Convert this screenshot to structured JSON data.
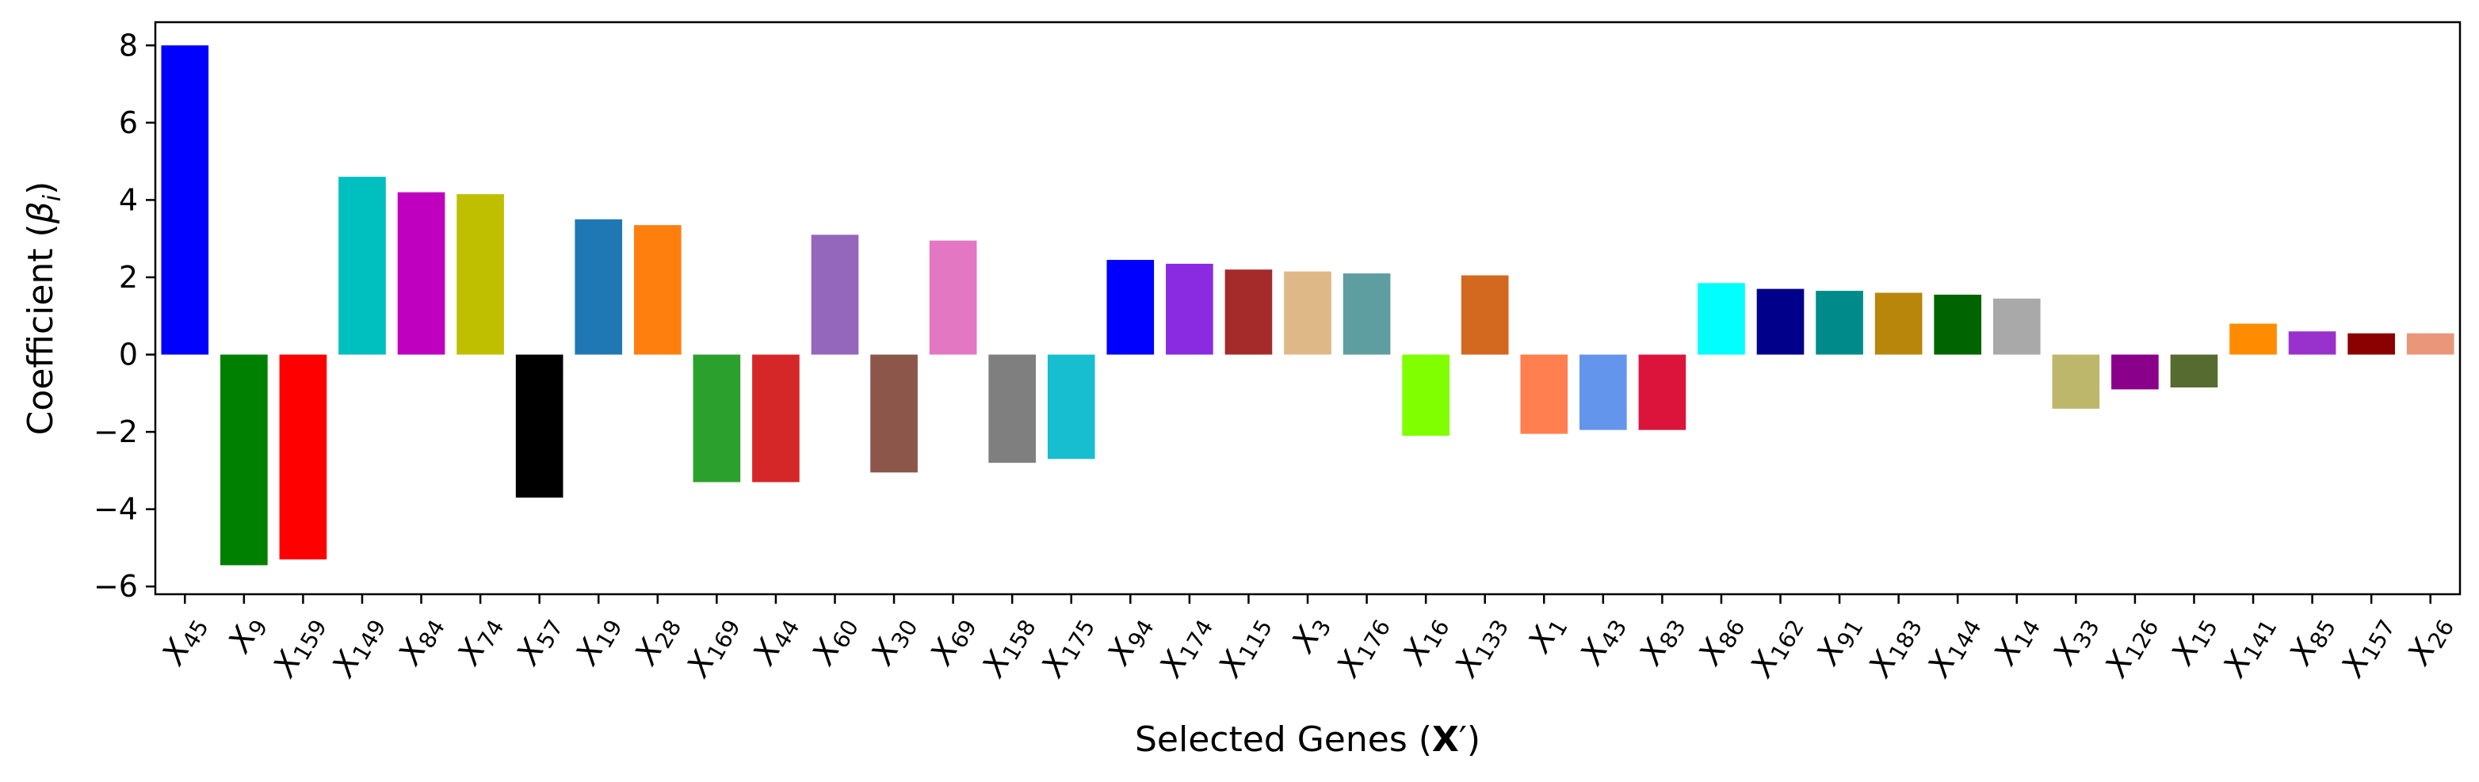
{
  "chart_data": {
    "type": "bar",
    "xlabel_main": "Selected Genes (",
    "xlabel_bold": "X",
    "xlabel_end": "′)",
    "ylabel_main": "Coefficient (",
    "ylabel_symbol": "β",
    "ylabel_sub": "i",
    "ylabel_end": ")",
    "ylim": [
      -6.2,
      8.6
    ],
    "yticks": [
      -6,
      -4,
      -2,
      0,
      2,
      4,
      6,
      8
    ],
    "categories": [
      {
        "letter": "X",
        "sub": "45"
      },
      {
        "letter": "X",
        "sub": "9"
      },
      {
        "letter": "X",
        "sub": "159"
      },
      {
        "letter": "X",
        "sub": "149"
      },
      {
        "letter": "X",
        "sub": "84"
      },
      {
        "letter": "X",
        "sub": "74"
      },
      {
        "letter": "X",
        "sub": "57"
      },
      {
        "letter": "X",
        "sub": "19"
      },
      {
        "letter": "X",
        "sub": "28"
      },
      {
        "letter": "X",
        "sub": "169"
      },
      {
        "letter": "X",
        "sub": "44"
      },
      {
        "letter": "X",
        "sub": "60"
      },
      {
        "letter": "X",
        "sub": "30"
      },
      {
        "letter": "X",
        "sub": "69"
      },
      {
        "letter": "X",
        "sub": "158"
      },
      {
        "letter": "X",
        "sub": "175"
      },
      {
        "letter": "X",
        "sub": "94"
      },
      {
        "letter": "X",
        "sub": "174"
      },
      {
        "letter": "X",
        "sub": "115"
      },
      {
        "letter": "X",
        "sub": "3"
      },
      {
        "letter": "X",
        "sub": "176"
      },
      {
        "letter": "X",
        "sub": "16"
      },
      {
        "letter": "X",
        "sub": "133"
      },
      {
        "letter": "X",
        "sub": "1"
      },
      {
        "letter": "X",
        "sub": "43"
      },
      {
        "letter": "X",
        "sub": "83"
      },
      {
        "letter": "X",
        "sub": "86"
      },
      {
        "letter": "X",
        "sub": "162"
      },
      {
        "letter": "X",
        "sub": "91"
      },
      {
        "letter": "X",
        "sub": "183"
      },
      {
        "letter": "X",
        "sub": "144"
      },
      {
        "letter": "X",
        "sub": "14"
      },
      {
        "letter": "X",
        "sub": "33"
      },
      {
        "letter": "X",
        "sub": "126"
      },
      {
        "letter": "X",
        "sub": "15"
      },
      {
        "letter": "X",
        "sub": "141"
      },
      {
        "letter": "X",
        "sub": "85"
      },
      {
        "letter": "X",
        "sub": "157"
      },
      {
        "letter": "X",
        "sub": "26"
      }
    ],
    "values": [
      8.0,
      -5.45,
      -5.3,
      4.6,
      4.2,
      4.15,
      -3.7,
      3.5,
      3.35,
      -3.3,
      -3.3,
      3.1,
      -3.05,
      2.95,
      -2.8,
      -2.7,
      2.45,
      2.35,
      2.2,
      2.15,
      2.1,
      -2.1,
      2.05,
      -2.05,
      -1.95,
      -1.95,
      1.85,
      1.7,
      1.65,
      1.6,
      1.55,
      1.45,
      -1.4,
      -0.9,
      -0.85,
      0.8,
      0.6,
      0.55,
      0.55
    ],
    "colors": [
      "#0000ff",
      "#008000",
      "#ff0000",
      "#00bfbf",
      "#bf00bf",
      "#bfbf00",
      "#000000",
      "#1f77b4",
      "#ff7f0e",
      "#2ca02c",
      "#d62728",
      "#9467bd",
      "#8c564b",
      "#e377c2",
      "#7f7f7f",
      "#17becf",
      "#0000ff",
      "#8a2be2",
      "#a52a2a",
      "#deb887",
      "#5f9ea0",
      "#7fff00",
      "#d2691e",
      "#ff7f50",
      "#6495ed",
      "#dc143c",
      "#00ffff",
      "#00008b",
      "#008b8b",
      "#b8860b",
      "#006400",
      "#a9a9a9",
      "#bdb76b",
      "#8b008b",
      "#556b2f",
      "#ff8c00",
      "#9932cc",
      "#8b0000",
      "#e9967a"
    ]
  }
}
